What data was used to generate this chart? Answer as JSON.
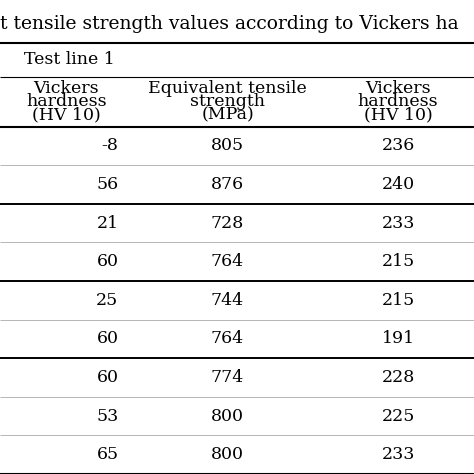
{
  "title": "t tensile strength values according to Vickers ha",
  "span_header": "Test line 1",
  "col1_header": [
    "Vickers",
    "hardness",
    "(HV 10)"
  ],
  "col2_header": [
    "Equivalent tensile",
    "strength",
    "(MPa)"
  ],
  "col3_header": [
    "Vickers",
    "hardness",
    "(HV 10)"
  ],
  "rows": [
    [
      "-8",
      "805",
      "236"
    ],
    [
      "56",
      "876",
      "240"
    ],
    [
      "21",
      "728",
      "233"
    ],
    [
      "60",
      "764",
      "215"
    ],
    [
      "25",
      "744",
      "215"
    ],
    [
      "60",
      "764",
      "191"
    ],
    [
      "60",
      "774",
      "228"
    ],
    [
      "53",
      "800",
      "225"
    ],
    [
      "65",
      "800",
      "233"
    ]
  ],
  "group_dividers_after": [
    1,
    3,
    5
  ],
  "background_color": "#ffffff",
  "text_color": "#000000",
  "font_size": 12.5,
  "title_font_size": 13.5
}
